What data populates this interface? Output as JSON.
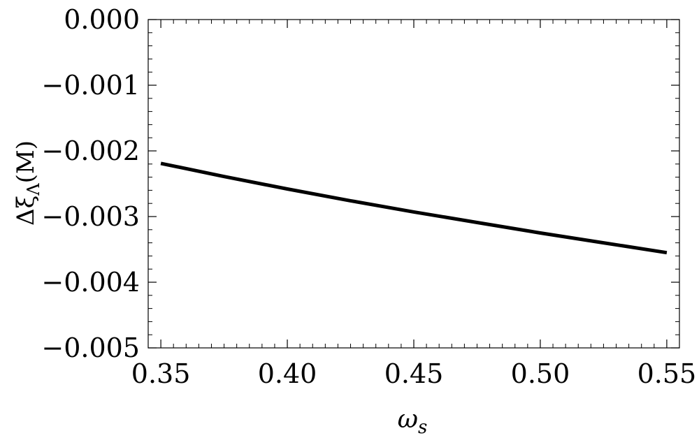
{
  "chart_data": {
    "type": "line",
    "title": "",
    "xlabel": "ω",
    "xlabel_sub": "s",
    "ylabel": "Δξ",
    "ylabel_sub": "Λ",
    "ylabel_unit": "(M)",
    "xlim": [
      0.345,
      0.555
    ],
    "ylim": [
      -0.005,
      0.0
    ],
    "x_ticks": [
      0.35,
      0.4,
      0.45,
      0.5,
      0.55
    ],
    "x_tick_labels": [
      "0.35",
      "0.40",
      "0.45",
      "0.50",
      "0.55"
    ],
    "y_ticks": [
      0.0,
      -0.001,
      -0.002,
      -0.003,
      -0.004,
      -0.005
    ],
    "y_tick_labels": [
      "0.000",
      "−0.001",
      "−0.002",
      "−0.003",
      "−0.004",
      "−0.005"
    ],
    "grid": false,
    "series": [
      {
        "color": "#000000",
        "x": [
          0.35,
          0.375,
          0.4,
          0.425,
          0.45,
          0.475,
          0.5,
          0.525,
          0.55
        ],
        "y": [
          -0.00219,
          -0.00239,
          -0.00258,
          -0.00276,
          -0.00293,
          -0.00309,
          -0.00325,
          -0.0034,
          -0.00355
        ]
      }
    ]
  }
}
